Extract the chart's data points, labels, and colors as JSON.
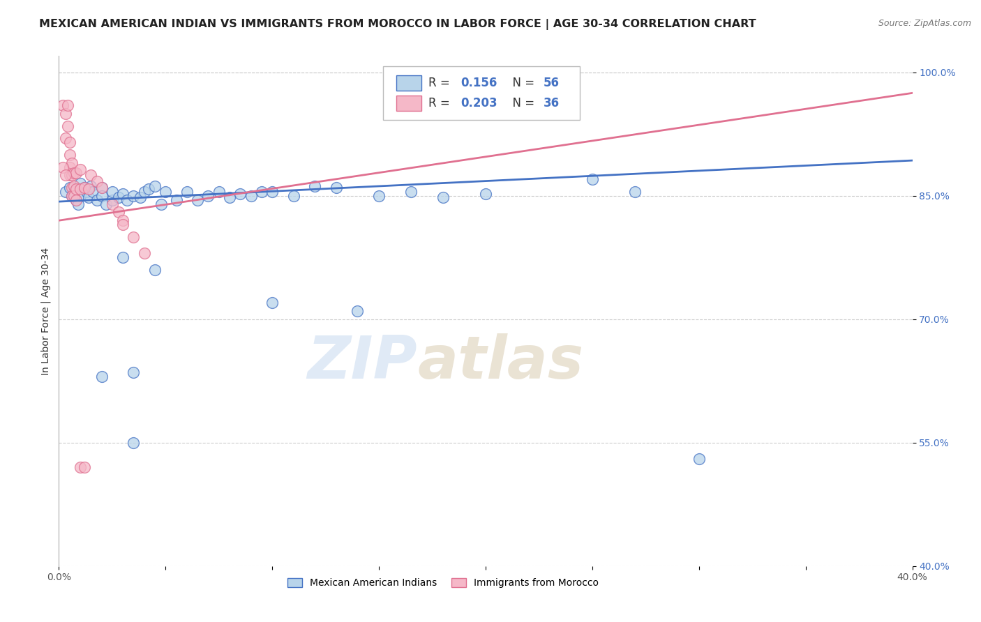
{
  "title": "MEXICAN AMERICAN INDIAN VS IMMIGRANTS FROM MOROCCO IN LABOR FORCE | AGE 30-34 CORRELATION CHART",
  "source": "Source: ZipAtlas.com",
  "ylabel": "In Labor Force | Age 30-34",
  "xlim": [
    0.0,
    0.4
  ],
  "ylim": [
    0.4,
    1.02
  ],
  "xticks": [
    0.0,
    0.05,
    0.1,
    0.15,
    0.2,
    0.25,
    0.3,
    0.35,
    0.4
  ],
  "xticklabels": [
    "0.0%",
    "",
    "",
    "",
    "",
    "",
    "",
    "",
    "40.0%"
  ],
  "yticks": [
    0.4,
    0.55,
    0.7,
    0.85,
    1.0
  ],
  "yticklabels": [
    "40.0%",
    "55.0%",
    "70.0%",
    "85.0%",
    "100.0%"
  ],
  "blue_R": 0.156,
  "blue_N": 56,
  "pink_R": 0.203,
  "pink_N": 36,
  "blue_color": "#b8d4ea",
  "pink_color": "#f5b8c8",
  "blue_line_color": "#4472c4",
  "pink_line_color": "#e07090",
  "blue_scatter": [
    [
      0.003,
      0.855
    ],
    [
      0.005,
      0.86
    ],
    [
      0.006,
      0.85
    ],
    [
      0.007,
      0.855
    ],
    [
      0.008,
      0.845
    ],
    [
      0.009,
      0.84
    ],
    [
      0.01,
      0.865
    ],
    [
      0.01,
      0.85
    ],
    [
      0.012,
      0.86
    ],
    [
      0.013,
      0.855
    ],
    [
      0.014,
      0.848
    ],
    [
      0.015,
      0.862
    ],
    [
      0.016,
      0.855
    ],
    [
      0.018,
      0.845
    ],
    [
      0.02,
      0.86
    ],
    [
      0.02,
      0.85
    ],
    [
      0.022,
      0.84
    ],
    [
      0.025,
      0.845
    ],
    [
      0.025,
      0.855
    ],
    [
      0.028,
      0.848
    ],
    [
      0.03,
      0.852
    ],
    [
      0.032,
      0.845
    ],
    [
      0.035,
      0.85
    ],
    [
      0.038,
      0.848
    ],
    [
      0.04,
      0.855
    ],
    [
      0.042,
      0.858
    ],
    [
      0.045,
      0.862
    ],
    [
      0.048,
      0.84
    ],
    [
      0.05,
      0.855
    ],
    [
      0.055,
      0.845
    ],
    [
      0.06,
      0.855
    ],
    [
      0.065,
      0.845
    ],
    [
      0.07,
      0.85
    ],
    [
      0.075,
      0.855
    ],
    [
      0.08,
      0.848
    ],
    [
      0.085,
      0.852
    ],
    [
      0.09,
      0.85
    ],
    [
      0.095,
      0.855
    ],
    [
      0.1,
      0.855
    ],
    [
      0.11,
      0.85
    ],
    [
      0.12,
      0.862
    ],
    [
      0.13,
      0.86
    ],
    [
      0.15,
      0.85
    ],
    [
      0.165,
      0.855
    ],
    [
      0.18,
      0.848
    ],
    [
      0.2,
      0.852
    ],
    [
      0.25,
      0.87
    ],
    [
      0.27,
      0.855
    ],
    [
      0.03,
      0.775
    ],
    [
      0.045,
      0.76
    ],
    [
      0.1,
      0.72
    ],
    [
      0.14,
      0.71
    ],
    [
      0.02,
      0.63
    ],
    [
      0.035,
      0.55
    ],
    [
      0.035,
      0.635
    ],
    [
      0.3,
      0.53
    ]
  ],
  "pink_scatter": [
    [
      0.002,
      0.96
    ],
    [
      0.003,
      0.95
    ],
    [
      0.003,
      0.92
    ],
    [
      0.004,
      0.935
    ],
    [
      0.004,
      0.96
    ],
    [
      0.005,
      0.915
    ],
    [
      0.005,
      0.9
    ],
    [
      0.005,
      0.885
    ],
    [
      0.005,
      0.875
    ],
    [
      0.006,
      0.89
    ],
    [
      0.006,
      0.875
    ],
    [
      0.006,
      0.86
    ],
    [
      0.006,
      0.85
    ],
    [
      0.007,
      0.878
    ],
    [
      0.007,
      0.862
    ],
    [
      0.007,
      0.85
    ],
    [
      0.008,
      0.878
    ],
    [
      0.008,
      0.858
    ],
    [
      0.008,
      0.845
    ],
    [
      0.01,
      0.882
    ],
    [
      0.01,
      0.858
    ],
    [
      0.012,
      0.86
    ],
    [
      0.014,
      0.858
    ],
    [
      0.015,
      0.875
    ],
    [
      0.018,
      0.868
    ],
    [
      0.02,
      0.86
    ],
    [
      0.025,
      0.84
    ],
    [
      0.028,
      0.83
    ],
    [
      0.03,
      0.82
    ],
    [
      0.03,
      0.815
    ],
    [
      0.035,
      0.8
    ],
    [
      0.04,
      0.78
    ],
    [
      0.01,
      0.52
    ],
    [
      0.012,
      0.52
    ],
    [
      0.002,
      0.885
    ],
    [
      0.003,
      0.875
    ]
  ],
  "watermark_zip": "ZIP",
  "watermark_atlas": "atlas",
  "background_color": "#ffffff",
  "grid_color": "#cccccc",
  "title_fontsize": 11.5,
  "axis_label_fontsize": 10,
  "tick_fontsize": 10
}
